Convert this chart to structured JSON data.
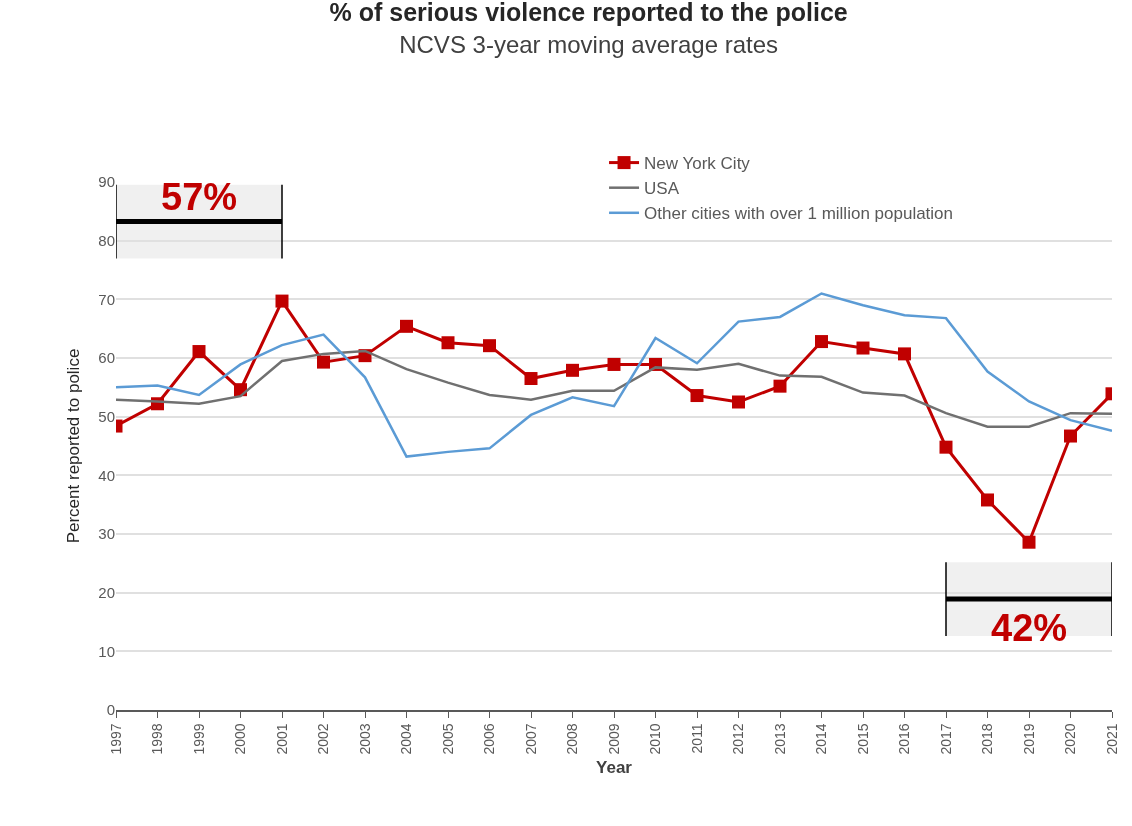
{
  "chart_data": {
    "type": "line",
    "title": "% of serious violence reported to the police",
    "subtitle": "NCVS 3-year moving average rates",
    "xlabel": "Year",
    "ylabel": "Percent reported to police",
    "x": [
      1997,
      1998,
      1999,
      2000,
      2001,
      2002,
      2003,
      2004,
      2005,
      2006,
      2007,
      2008,
      2009,
      2010,
      2011,
      2012,
      2013,
      2014,
      2015,
      2016,
      2017,
      2018,
      2019,
      2020,
      2021
    ],
    "series": [
      {
        "name": "New York City",
        "color": "#c00000",
        "marker": "square",
        "values": [
          48.4,
          52.2,
          61.1,
          54.6,
          69.7,
          59.3,
          60.4,
          65.4,
          62.6,
          62.1,
          56.5,
          57.9,
          58.9,
          58.9,
          53.6,
          52.5,
          55.2,
          62.8,
          61.7,
          60.7,
          44.8,
          35.8,
          28.6,
          46.7,
          53.9
        ]
      },
      {
        "name": "USA",
        "color": "#707070",
        "marker": "none",
        "values": [
          52.9,
          52.6,
          52.2,
          53.5,
          59.5,
          60.7,
          61.2,
          58.1,
          55.8,
          53.7,
          52.9,
          54.4,
          54.4,
          58.4,
          58.0,
          59.0,
          57.0,
          56.8,
          54.1,
          53.6,
          50.6,
          48.3,
          48.3,
          50.6,
          50.5
        ]
      },
      {
        "name": "Other cities with over 1 million population",
        "color": "#5b9bd5",
        "marker": "none",
        "values": [
          55.0,
          55.3,
          53.7,
          58.9,
          62.2,
          64.0,
          56.7,
          43.2,
          44.0,
          44.6,
          50.3,
          53.3,
          51.8,
          63.4,
          59.1,
          66.2,
          67.0,
          71.0,
          69.0,
          67.3,
          66.8,
          57.7,
          52.6,
          49.4,
          47.6
        ]
      }
    ],
    "bands": [
      {
        "axis": "x",
        "from": 1997,
        "to": 2001,
        "label": "57%",
        "color": "#000000"
      },
      {
        "axis": "x",
        "from": 2017,
        "to": 2021,
        "label": "42%",
        "color": "#000000"
      }
    ],
    "xlim": [
      1997,
      2021
    ],
    "xticks": [
      1997,
      1998,
      1999,
      2000,
      2001,
      2002,
      2003,
      2004,
      2005,
      2006,
      2007,
      2008,
      2009,
      2010,
      2011,
      2012,
      2013,
      2014,
      2015,
      2016,
      2017,
      2018,
      2019,
      2020,
      2021
    ],
    "ylim": [
      0,
      90
    ],
    "yticks": [
      0,
      10,
      20,
      30,
      40,
      50,
      60,
      70,
      80,
      90
    ],
    "grid": "y",
    "legend": "top right",
    "line_style": "solid"
  }
}
